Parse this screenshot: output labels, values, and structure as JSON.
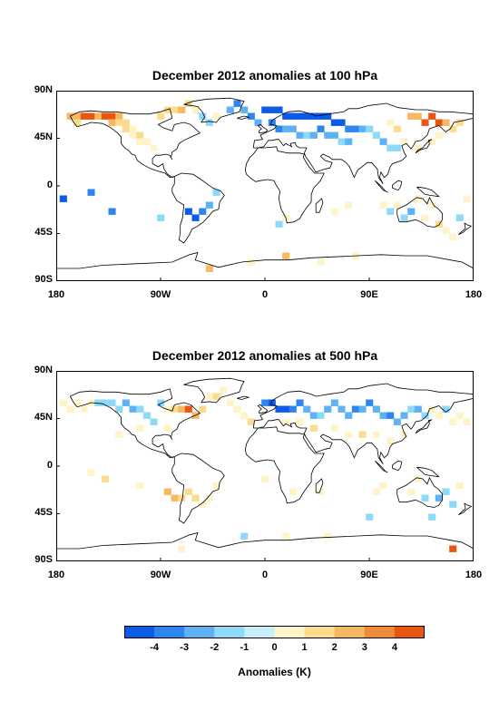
{
  "panels": [
    {
      "title": "December 2012 anomalies at 100 hPa",
      "lat_labels": [
        "90N",
        "45N",
        "0",
        "45S",
        "90S"
      ],
      "lon_labels": [
        "180",
        "90W",
        "0",
        "90E",
        "180"
      ],
      "cells": [
        [
          -168,
          66,
          3
        ],
        [
          -162,
          66,
          3
        ],
        [
          -162,
          60,
          2
        ],
        [
          -156,
          66,
          4
        ],
        [
          -150,
          66,
          4
        ],
        [
          -144,
          66,
          3
        ],
        [
          -138,
          66,
          4
        ],
        [
          -132,
          66,
          4
        ],
        [
          -132,
          60,
          3
        ],
        [
          -126,
          66,
          3
        ],
        [
          -126,
          60,
          2
        ],
        [
          -120,
          60,
          2
        ],
        [
          -120,
          54,
          2
        ],
        [
          -114,
          54,
          1
        ],
        [
          -114,
          48,
          1
        ],
        [
          -108,
          48,
          2
        ],
        [
          -108,
          42,
          1
        ],
        [
          -102,
          42,
          1
        ],
        [
          -96,
          36,
          1
        ],
        [
          -90,
          66,
          2
        ],
        [
          -84,
          72,
          2
        ],
        [
          -78,
          72,
          2
        ],
        [
          -72,
          72,
          3
        ],
        [
          -66,
          78,
          2
        ],
        [
          -60,
          72,
          1
        ],
        [
          -54,
          66,
          -1
        ],
        [
          -48,
          60,
          -1
        ],
        [
          -42,
          66,
          1
        ],
        [
          -30,
          72,
          -2
        ],
        [
          -24,
          78,
          -3
        ],
        [
          -18,
          72,
          -2
        ],
        [
          -12,
          66,
          -3
        ],
        [
          -6,
          60,
          -2
        ],
        [
          0,
          72,
          -4
        ],
        [
          6,
          72,
          -4
        ],
        [
          12,
          72,
          -4
        ],
        [
          18,
          66,
          -4
        ],
        [
          24,
          66,
          -4
        ],
        [
          30,
          66,
          -4
        ],
        [
          36,
          66,
          -4
        ],
        [
          42,
          66,
          -4
        ],
        [
          48,
          66,
          -4
        ],
        [
          54,
          66,
          -4
        ],
        [
          60,
          60,
          -4
        ],
        [
          66,
          60,
          -4
        ],
        [
          72,
          54,
          -3
        ],
        [
          78,
          54,
          -3
        ],
        [
          6,
          60,
          -3
        ],
        [
          12,
          54,
          -3
        ],
        [
          18,
          54,
          -2
        ],
        [
          24,
          54,
          -2
        ],
        [
          30,
          48,
          -2
        ],
        [
          36,
          48,
          -1
        ],
        [
          42,
          48,
          -2
        ],
        [
          48,
          54,
          -3
        ],
        [
          54,
          48,
          -2
        ],
        [
          60,
          48,
          -2
        ],
        [
          66,
          42,
          -1
        ],
        [
          72,
          42,
          -2
        ],
        [
          84,
          54,
          -2
        ],
        [
          90,
          54,
          -1
        ],
        [
          96,
          48,
          -1
        ],
        [
          102,
          42,
          -2
        ],
        [
          108,
          36,
          -1
        ],
        [
          114,
          36,
          -1
        ],
        [
          120,
          42,
          1
        ],
        [
          114,
          54,
          2
        ],
        [
          108,
          60,
          1
        ],
        [
          126,
          66,
          3
        ],
        [
          132,
          66,
          3
        ],
        [
          138,
          60,
          4
        ],
        [
          144,
          66,
          4
        ],
        [
          150,
          60,
          4
        ],
        [
          156,
          60,
          3
        ],
        [
          162,
          54,
          2
        ],
        [
          168,
          60,
          2
        ],
        [
          150,
          48,
          1
        ],
        [
          144,
          42,
          1
        ],
        [
          132,
          36,
          1
        ],
        [
          -174,
          -12,
          -4
        ],
        [
          -150,
          -6,
          -3
        ],
        [
          -132,
          -24,
          -3
        ],
        [
          -66,
          -24,
          -4
        ],
        [
          -60,
          -30,
          -4
        ],
        [
          -54,
          -24,
          -3
        ],
        [
          -48,
          -18,
          -2
        ],
        [
          -42,
          -6,
          -1
        ],
        [
          -90,
          -30,
          -1
        ],
        [
          12,
          -36,
          -1
        ],
        [
          18,
          -30,
          1
        ],
        [
          60,
          -24,
          1
        ],
        [
          72,
          -18,
          1
        ],
        [
          102,
          -18,
          1
        ],
        [
          108,
          -24,
          -1
        ],
        [
          114,
          -18,
          1
        ],
        [
          120,
          -30,
          -1
        ],
        [
          126,
          -24,
          -2
        ],
        [
          132,
          -12,
          1
        ],
        [
          138,
          -30,
          1
        ],
        [
          144,
          -18,
          1
        ],
        [
          150,
          -36,
          2
        ],
        [
          156,
          -42,
          1
        ],
        [
          162,
          -48,
          1
        ],
        [
          168,
          -30,
          -1
        ],
        [
          174,
          -12,
          1
        ],
        [
          -48,
          -78,
          3
        ],
        [
          -12,
          -72,
          1
        ],
        [
          18,
          -66,
          3
        ],
        [
          48,
          -72,
          1
        ],
        [
          78,
          -66,
          1
        ]
      ]
    },
    {
      "title": "December 2012 anomalies at 500 hPa",
      "lat_labels": [
        "90N",
        "45N",
        "0",
        "45S",
        "90S"
      ],
      "lon_labels": [
        "180",
        "90W",
        "0",
        "90E",
        "180"
      ],
      "cells": [
        [
          -174,
          60,
          1
        ],
        [
          -168,
          54,
          1
        ],
        [
          -162,
          60,
          1
        ],
        [
          -156,
          54,
          1
        ],
        [
          -150,
          60,
          1
        ],
        [
          -144,
          60,
          -1
        ],
        [
          -138,
          60,
          -1
        ],
        [
          -132,
          60,
          -1
        ],
        [
          -126,
          54,
          -1
        ],
        [
          -120,
          60,
          -2
        ],
        [
          -114,
          54,
          -2
        ],
        [
          -108,
          54,
          -1
        ],
        [
          -102,
          48,
          -1
        ],
        [
          -96,
          42,
          -1
        ],
        [
          -90,
          60,
          -1
        ],
        [
          -84,
          54,
          1
        ],
        [
          -78,
          54,
          2
        ],
        [
          -72,
          54,
          3
        ],
        [
          -66,
          54,
          4
        ],
        [
          -60,
          48,
          3
        ],
        [
          -54,
          54,
          2
        ],
        [
          -48,
          66,
          1
        ],
        [
          -42,
          66,
          2
        ],
        [
          -36,
          72,
          1
        ],
        [
          -30,
          60,
          1
        ],
        [
          -24,
          54,
          1
        ],
        [
          -18,
          48,
          1
        ],
        [
          -12,
          42,
          2
        ],
        [
          -108,
          36,
          1
        ],
        [
          -126,
          30,
          1
        ],
        [
          -84,
          36,
          1
        ],
        [
          0,
          60,
          -3
        ],
        [
          6,
          60,
          -4
        ],
        [
          12,
          54,
          -4
        ],
        [
          18,
          54,
          -4
        ],
        [
          24,
          54,
          -3
        ],
        [
          30,
          60,
          -3
        ],
        [
          36,
          54,
          -2
        ],
        [
          42,
          48,
          -2
        ],
        [
          48,
          48,
          -1
        ],
        [
          54,
          54,
          -2
        ],
        [
          60,
          60,
          -2
        ],
        [
          66,
          54,
          -2
        ],
        [
          72,
          48,
          -2
        ],
        [
          78,
          54,
          -3
        ],
        [
          84,
          54,
          -2
        ],
        [
          90,
          60,
          -3
        ],
        [
          96,
          54,
          -2
        ],
        [
          102,
          48,
          -2
        ],
        [
          108,
          48,
          -3
        ],
        [
          114,
          42,
          -2
        ],
        [
          120,
          48,
          -2
        ],
        [
          126,
          54,
          -1
        ],
        [
          132,
          54,
          -2
        ],
        [
          138,
          48,
          -1
        ],
        [
          144,
          54,
          1
        ],
        [
          150,
          48,
          1
        ],
        [
          156,
          54,
          -1
        ],
        [
          162,
          42,
          1
        ],
        [
          168,
          48,
          1
        ],
        [
          174,
          42,
          1
        ],
        [
          18,
          42,
          1
        ],
        [
          30,
          42,
          1
        ],
        [
          42,
          36,
          2
        ],
        [
          60,
          36,
          1
        ],
        [
          72,
          30,
          1
        ],
        [
          84,
          30,
          2
        ],
        [
          96,
          30,
          1
        ],
        [
          108,
          24,
          1
        ],
        [
          120,
          30,
          1
        ],
        [
          -138,
          -12,
          2
        ],
        [
          -84,
          -24,
          3
        ],
        [
          -78,
          -30,
          3
        ],
        [
          -72,
          -30,
          2
        ],
        [
          -66,
          -24,
          2
        ],
        [
          -60,
          -30,
          2
        ],
        [
          -54,
          -36,
          1
        ],
        [
          -48,
          -30,
          1
        ],
        [
          -42,
          -18,
          1
        ],
        [
          -108,
          -18,
          1
        ],
        [
          -150,
          -6,
          1
        ],
        [
          0,
          -12,
          1
        ],
        [
          24,
          -24,
          1
        ],
        [
          48,
          -24,
          1
        ],
        [
          96,
          -24,
          1
        ],
        [
          102,
          -18,
          1
        ],
        [
          126,
          -24,
          1
        ],
        [
          132,
          -12,
          1
        ],
        [
          138,
          -30,
          -1
        ],
        [
          150,
          -30,
          -2
        ],
        [
          156,
          -24,
          -1
        ],
        [
          162,
          -36,
          -1
        ],
        [
          144,
          -48,
          -1
        ],
        [
          90,
          -48,
          -1
        ],
        [
          168,
          -18,
          1
        ],
        [
          -18,
          -66,
          -1
        ],
        [
          18,
          -66,
          1
        ],
        [
          54,
          -66,
          1
        ],
        [
          -72,
          -78,
          1
        ],
        [
          162,
          -78,
          4
        ]
      ]
    }
  ],
  "colorbar": {
    "ticks": [
      "-4",
      "-3",
      "-2",
      "-1",
      "0",
      "1",
      "2",
      "3",
      "4"
    ],
    "title": "Anomalies (K)",
    "levels": [
      -4.5,
      -3.5,
      -2.5,
      -1.5,
      -0.5,
      0.5,
      1.5,
      2.5,
      3.5,
      4.5
    ],
    "colors": [
      "#0b5be6",
      "#2c86ee",
      "#5cb2f4",
      "#8dd9f8",
      "#c8f0fa",
      "#fef4c8",
      "#fbdc8c",
      "#f6b860",
      "#ef8a36",
      "#e9560f"
    ]
  }
}
